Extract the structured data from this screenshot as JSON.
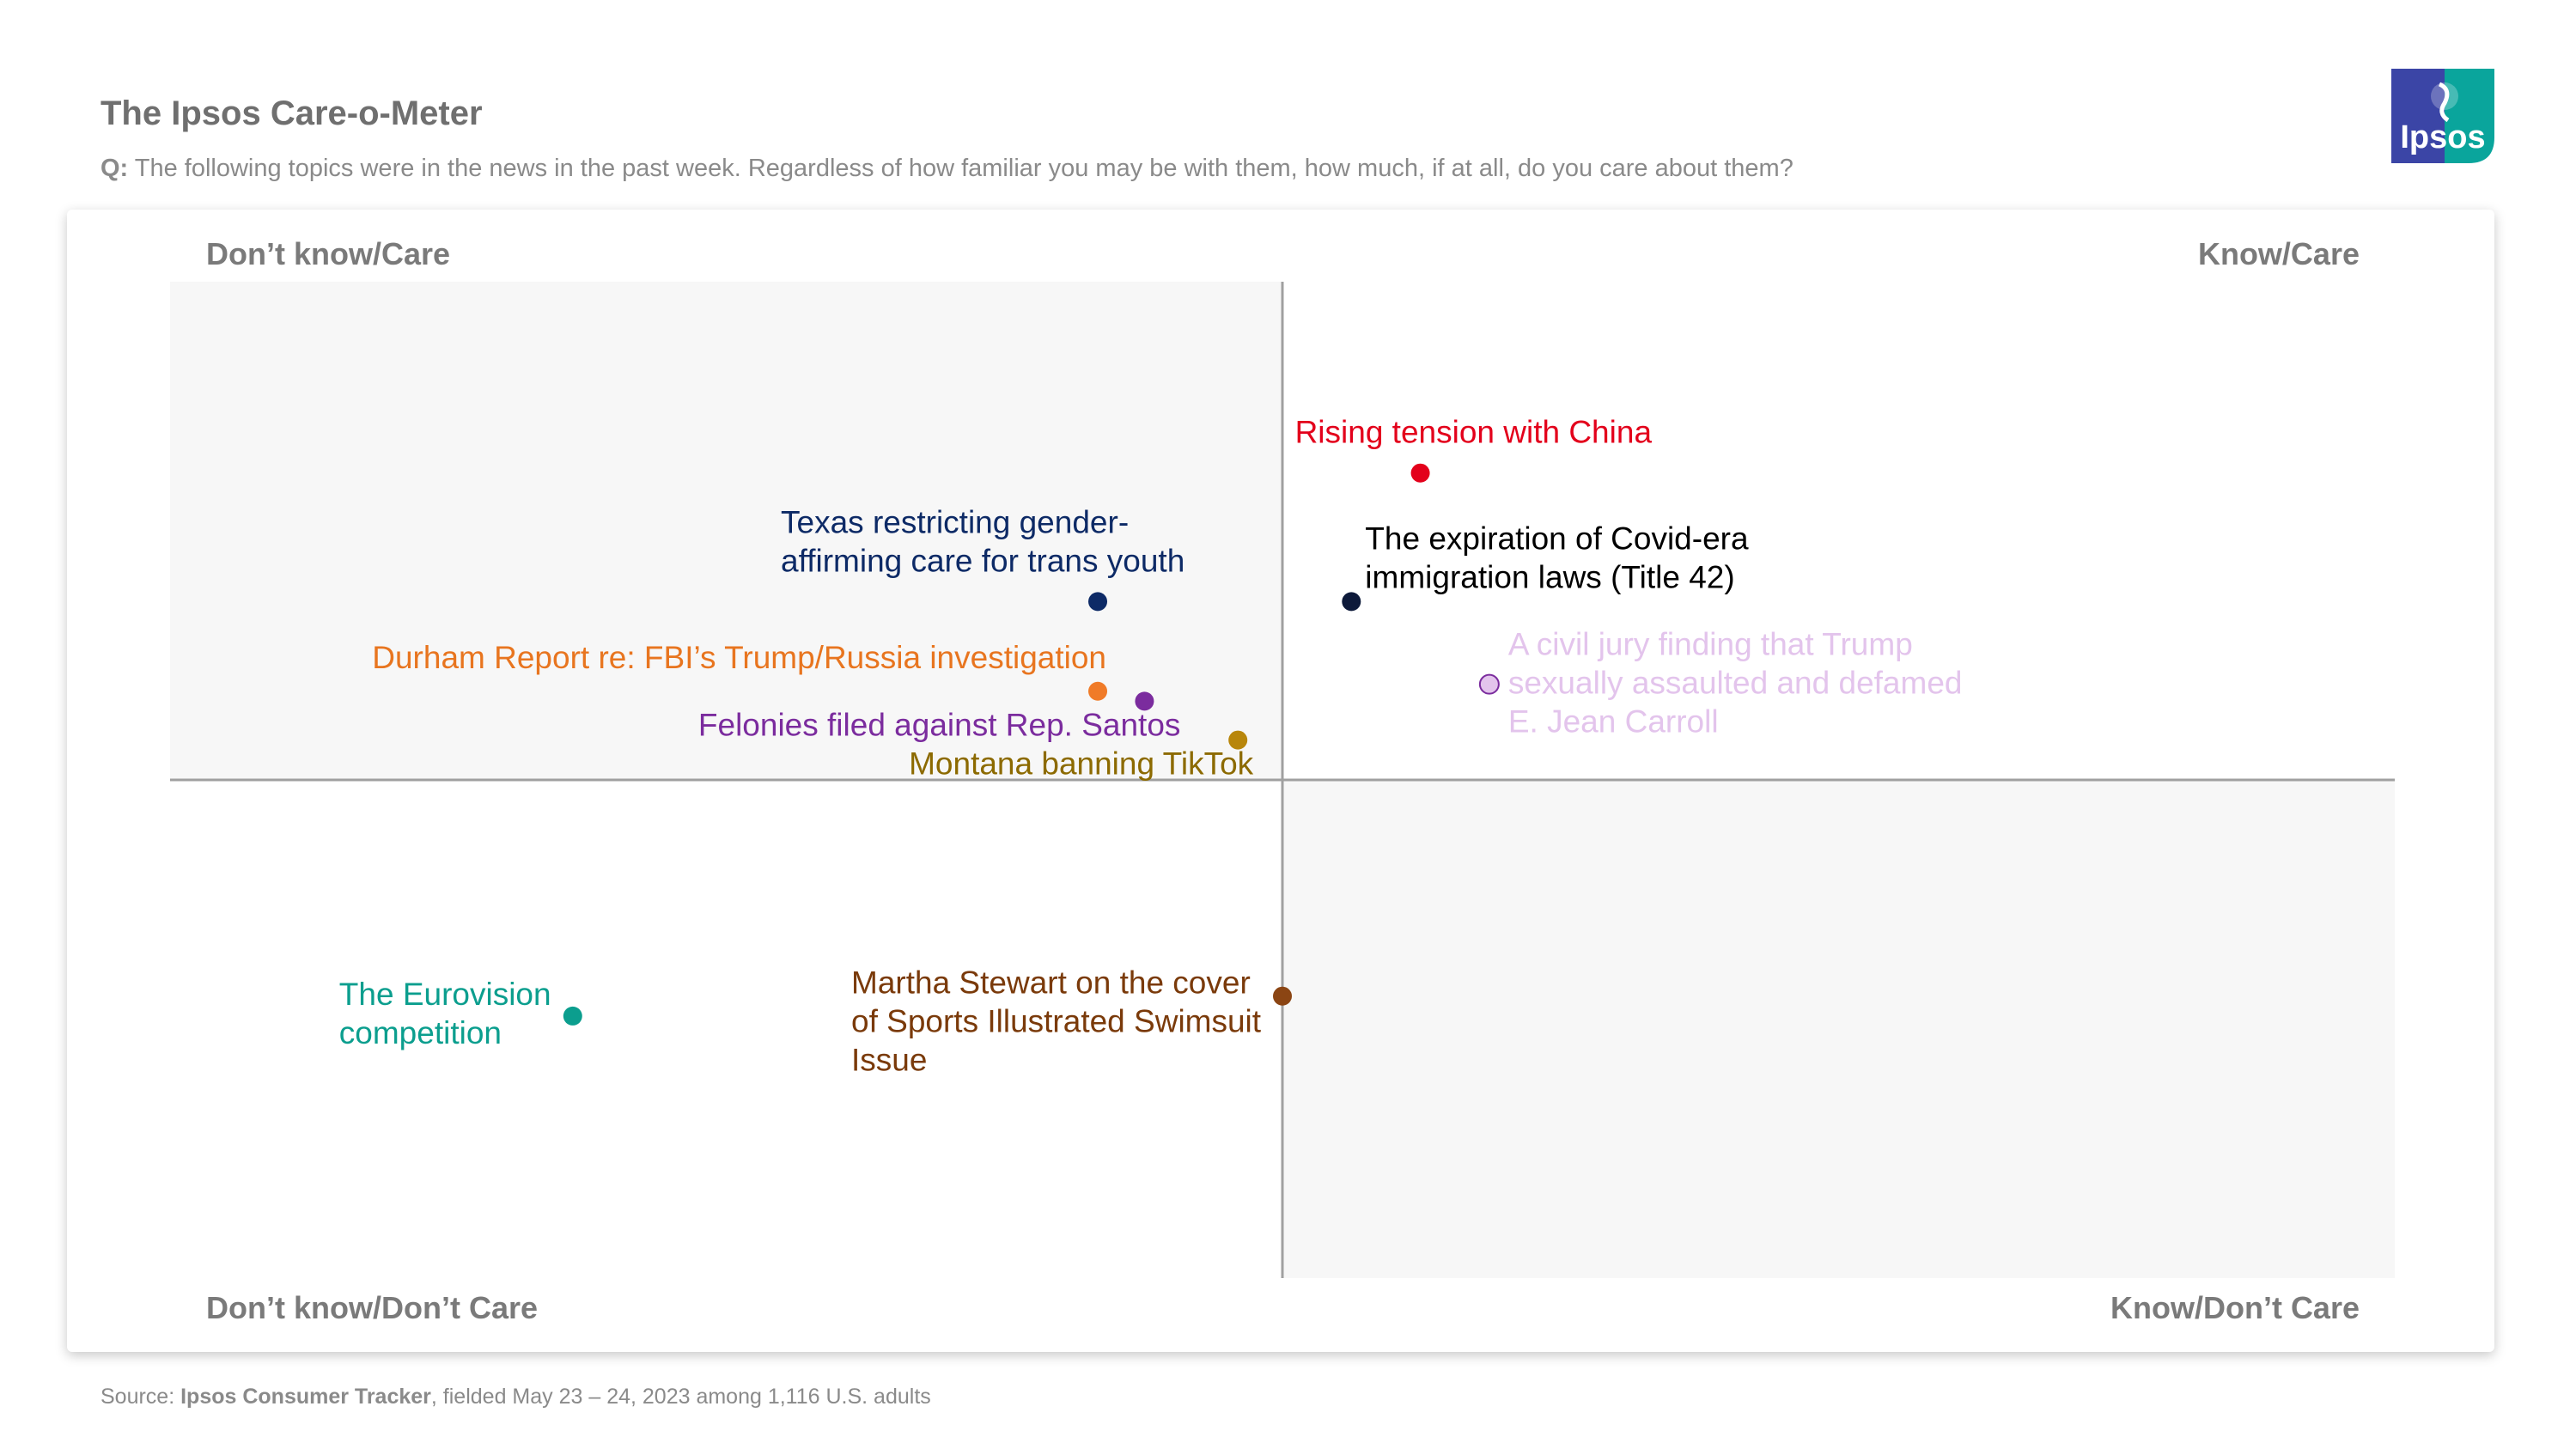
{
  "header": {
    "title": "The Ipsos Care-o-Meter",
    "question_prefix": "Q:",
    "question_text": " The following topics were in the news in the past week. Regardless of how familiar you may be with them, how much, if at all, do you care about them?"
  },
  "logo": {
    "text": "Ipsos",
    "color": "#0aa59c",
    "accent": "#3b45a6"
  },
  "quadrants": {
    "top_left": "Don’t know/Care",
    "top_right": "Know/Care",
    "bottom_left": "Don’t know/Don’t Care",
    "bottom_right": "Know/Don’t Care"
  },
  "footer": {
    "prefix": "Source: ",
    "source_name": "Ipsos Consumer Tracker",
    "suffix": ", fielded May 23 – 24, 2023 among 1,116 U.S. adults"
  },
  "chart_data": {
    "type": "scatter",
    "xlim": [
      0,
      100
    ],
    "ylim": [
      0,
      100
    ],
    "x_divider": 50,
    "y_divider": 50,
    "points": [
      {
        "label": [
          "Rising tension with China"
        ],
        "x": 56.2,
        "y": 80.8,
        "color": "#e3001b",
        "label_color": "#e3001b"
      },
      {
        "label": [
          "The expiration of Covid-era",
          "immigration laws (Title 42)"
        ],
        "x": 53.1,
        "y": 67.9,
        "color": "#0d1a3a",
        "label_color": "#000000"
      },
      {
        "label": [
          "A civil jury finding that Trump",
          "sexually assaulted and defamed",
          "E. Jean Carroll"
        ],
        "x": 59.3,
        "y": 59.6,
        "color": "#e3c4ec",
        "label_color": "#e3c4ec"
      },
      {
        "label": [
          "Texas restricting gender-",
          "affirming care for trans youth"
        ],
        "x": 41.7,
        "y": 67.9,
        "color": "#0d2a66",
        "label_color": "#0d2a66"
      },
      {
        "label": [
          "Durham Report re: FBI’s Trump/Russia investigation"
        ],
        "x": 41.7,
        "y": 58.9,
        "color": "#f07b28",
        "label_color": "#e8751f"
      },
      {
        "label": [
          "Felonies filed against Rep. Santos"
        ],
        "x": 43.8,
        "y": 57.9,
        "color": "#7b2c9e",
        "label_color": "#7b2c9e"
      },
      {
        "label": [
          "Montana banning TikTok"
        ],
        "x": 48.0,
        "y": 54.0,
        "color": "#b8860b",
        "label_color": "#8c6a00"
      },
      {
        "label": [
          "Martha Stewart on the cover",
          "of Sports Illustrated Swimsuit",
          "Issue"
        ],
        "x": 50.0,
        "y": 28.3,
        "color": "#8b4513",
        "label_color": "#7a3a0a"
      },
      {
        "label": [
          "The Eurovision",
          "competition"
        ],
        "x": 18.1,
        "y": 26.3,
        "color": "#0b9e8e",
        "label_color": "#0b9e8e"
      }
    ]
  }
}
